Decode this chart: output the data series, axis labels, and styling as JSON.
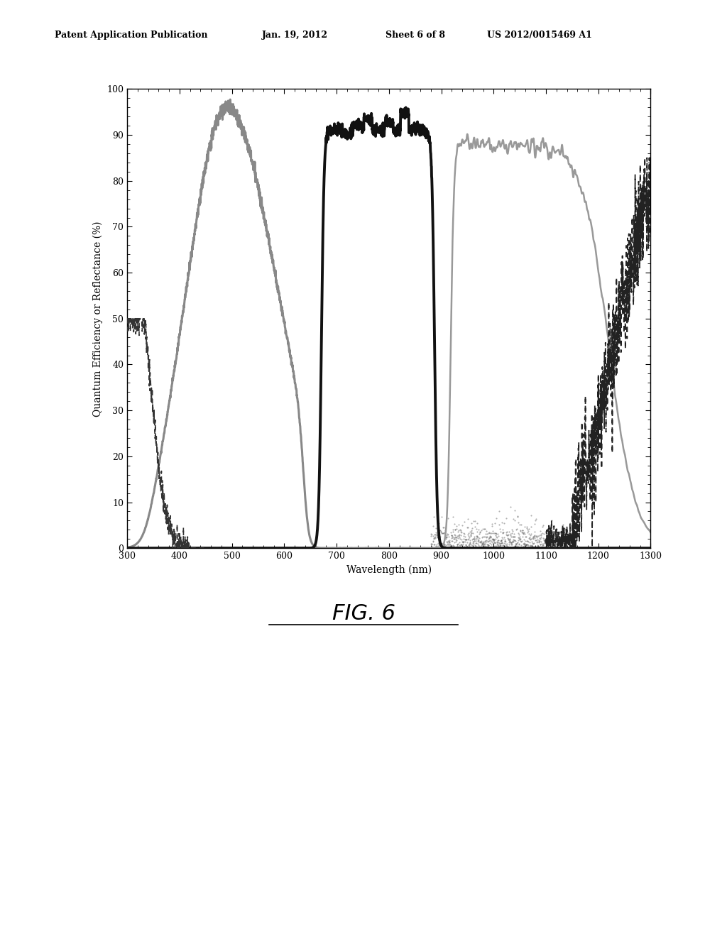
{
  "title_header": "Patent Application Publication",
  "date_header": "Jan. 19, 2012",
  "sheet_header": "Sheet 6 of 8",
  "patent_header": "US 2012/0015469 A1",
  "xlabel": "Wavelength (nm)",
  "ylabel": "Quantum Efficiency or Reflectance (%)",
  "xmin": 300,
  "xmax": 1300,
  "ymin": 0,
  "ymax": 100,
  "xticks": [
    300,
    400,
    500,
    600,
    700,
    800,
    900,
    1000,
    1100,
    1200,
    1300
  ],
  "yticks": [
    0,
    10,
    20,
    30,
    40,
    50,
    60,
    70,
    80,
    90,
    100
  ],
  "fig_label": "FIG. 6",
  "background_color": "#ffffff",
  "plot_bg": "#ffffff",
  "header_fontsize": 9,
  "axis_label_fontsize": 10,
  "tick_fontsize": 9
}
